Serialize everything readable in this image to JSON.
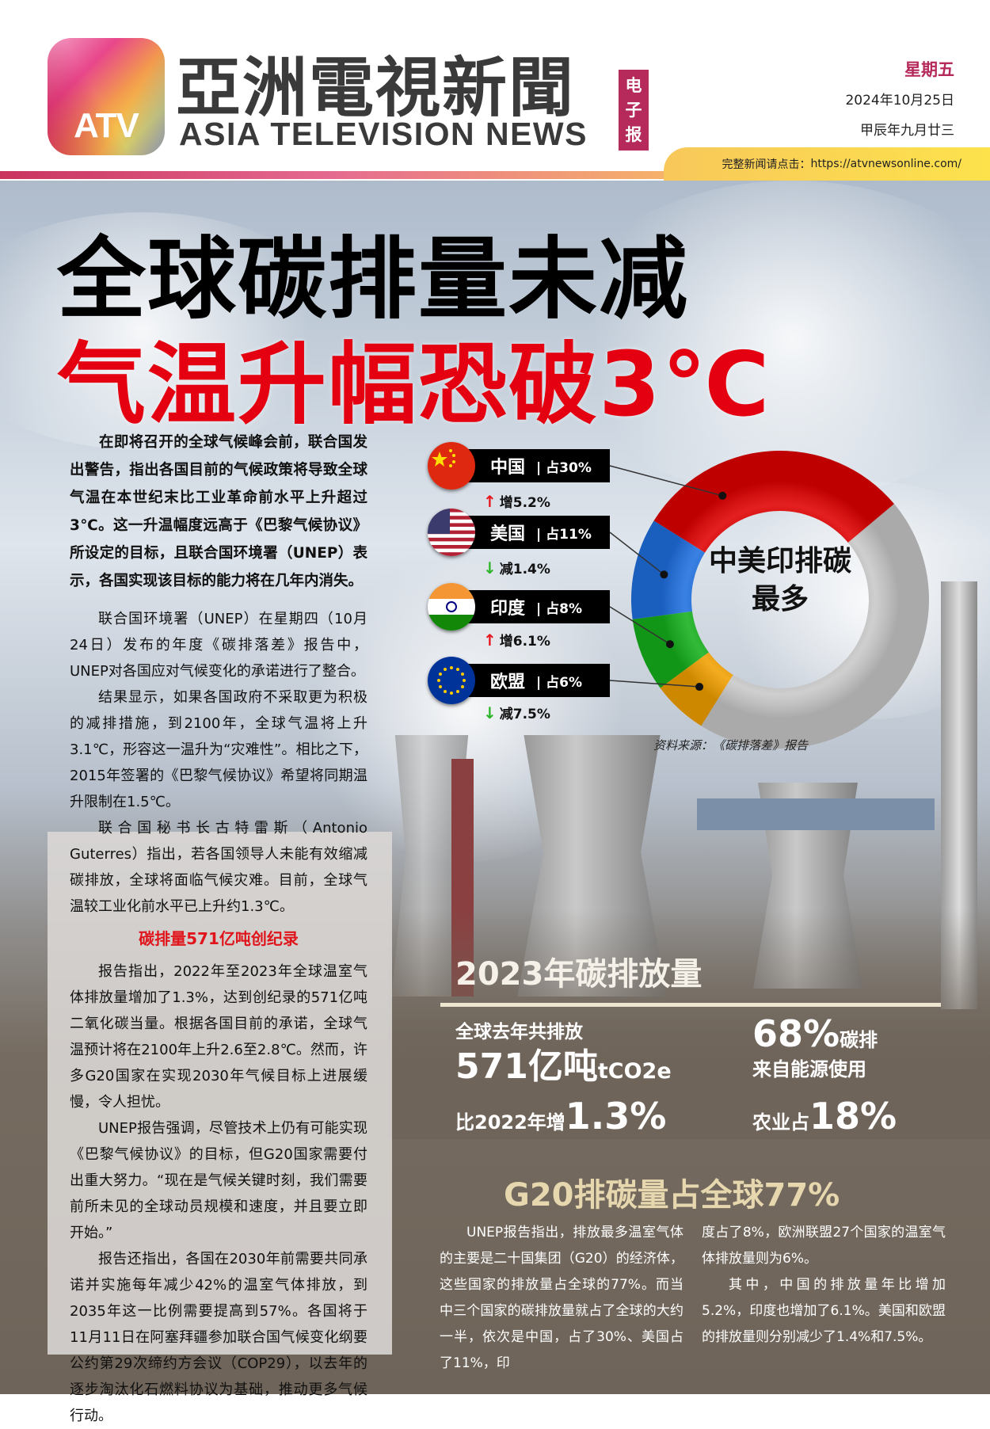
{
  "header": {
    "logo_text": "ATV",
    "title_cn": "亞洲電視新聞",
    "title_en": "ASIA TELEVISION NEWS",
    "badge": [
      "电",
      "子",
      "报"
    ],
    "weekday": "星期五",
    "date": "2024年10月25日",
    "lunar_date": "甲辰年九月廿三",
    "link_label": "完整新闻请点击：",
    "link_url": "https://atvnewsonline.com/"
  },
  "headline": {
    "line1": "全球碳排量未减",
    "line2": "气温升幅恐破3℃"
  },
  "article": {
    "lead": "在即将召开的全球气候峰会前，联合国发出警告，指出各国目前的气候政策将导致全球气温在本世纪末比工业革命前水平上升超过3℃。这一升温幅度远高于《巴黎气候协议》所设定的目标，且联合国环境署（UNEP）表示，各国实现该目标的能力将在几年内消失。",
    "paragraphs": [
      "联合国环境署（UNEP）在星期四（10月24日）发布的年度《碳排落差》报告中，UNEP对各国应对气候变化的承诺进行了整合。",
      "结果显示，如果各国政府不采取更为积极的减排措施，到2100年，全球气温将上升3.1℃，形容这一温升为“灾难性”。相比之下，2015年签署的《巴黎气候协议》希望将同期温升限制在1.5℃。",
      "联合国秘书长古特雷斯（Antonio Guterres）指出，若各国领导人未能有效缩减碳排放，全球将面临气候灾难。目前，全球气温较工业化前水平已上升约1.3℃。"
    ],
    "subheading": "碳排量571亿吨创纪录",
    "paragraphs2": [
      "报告指出，2022年至2023年全球温室气体排放量增加了1.3%，达到创纪录的571亿吨二氧化碳当量。根据各国目前的承诺，全球气温预计将在2100年上升2.6至2.8℃。然而，许多G20国家在实现2030年气候目标上进展缓慢，令人担忧。",
      "UNEP报告强调，尽管技术上仍有可能实现《巴黎气候协议》的目标，但G20国家需要付出重大努力。“现在是气候关键时刻，我们需要前所未见的全球动员规模和速度，并且要立即开始。”",
      "报告还指出，各国在2030年前需要共同承诺并实施每年减少42%的温室气体排放，到2035年这一比例需要提高到57%。各国将于11月11日在阿塞拜疆参加联合国气候变化纲要公约第29次缔约方会议（COP29），以去年的逐步淘汰化石燃料协议为基础，推动更多气候行动。"
    ]
  },
  "chart_data": {
    "type": "pie",
    "title": "中美印排碳最多",
    "source": "资料来源：《碳排落差》报告",
    "unit": "%",
    "series": [
      {
        "name": "中国",
        "share_label": "占30%",
        "value": 30,
        "change": "增5.2%",
        "direction": "up",
        "color": "#e00000",
        "flag": "china-flag"
      },
      {
        "name": "美国",
        "share_label": "占11%",
        "value": 11,
        "change": "减1.4%",
        "direction": "down",
        "color": "#1e6fe0",
        "flag": "usa-flag"
      },
      {
        "name": "印度",
        "share_label": "占8%",
        "value": 8,
        "change": "增6.1%",
        "direction": "up",
        "color": "#15b01c",
        "flag": "india-flag"
      },
      {
        "name": "欧盟",
        "share_label": "占6%",
        "value": 6,
        "change": "减7.5%",
        "direction": "down",
        "color": "#f2a000",
        "flag": "eu-flag"
      }
    ],
    "remainder": {
      "value": 45,
      "color": "#c8c8c8"
    },
    "up_color": "#e8141c",
    "down_color": "#2db52a"
  },
  "stats": {
    "title": "2023年碳排放量",
    "total_label": "全球去年共排放",
    "total_value": "571亿吨",
    "total_unit": "tCO2e",
    "energy_value": "68%",
    "energy_label1": "碳排",
    "energy_label2": "来自能源使用",
    "growth_label": "比2022年增",
    "growth_value": "1.3%",
    "agri_label": "农业占",
    "agri_value": "18%"
  },
  "g20": {
    "heading": "G20排碳量占全球77%",
    "col1": "UNEP报告指出，排放最多温室气体的主要是二十国集团（G20）的经济体，这些国家的排放量占全球的77%。而当中三个国家的碳排放量就占了全球的大约一半，依次是中国，占了30%、美国占了11%，印",
    "col2a": "度占了8%，欧洲联盟27个国家的温室气体排放量则为6%。",
    "col2b": "其中，中国的排放量年比增加5.2%，印度也增加了6.1%。美国和欧盟的排放量则分别减少了1.4%和7.5%。"
  }
}
